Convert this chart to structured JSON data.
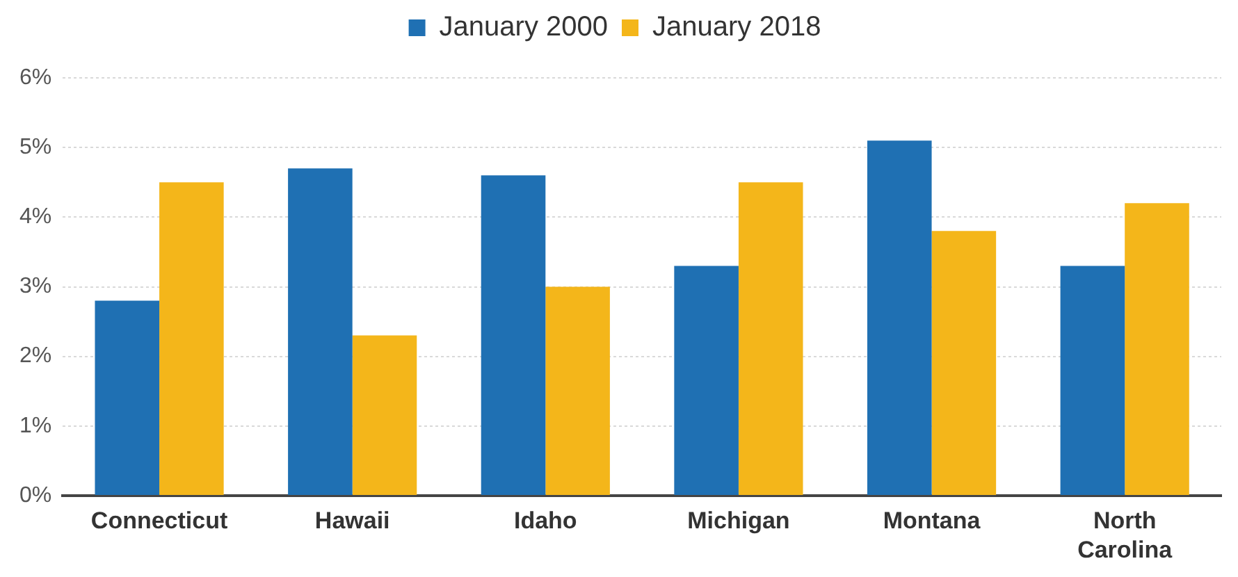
{
  "chart_data": {
    "type": "bar",
    "categories": [
      "Connecticut",
      "Hawaii",
      "Idaho",
      "Michigan",
      "Montana",
      "North Carolina"
    ],
    "series": [
      {
        "name": "January 2000",
        "color": "#1f70b3",
        "values": [
          2.8,
          4.7,
          4.6,
          3.3,
          5.1,
          3.3
        ]
      },
      {
        "name": "January 2018",
        "color": "#f4b61a",
        "values": [
          4.5,
          2.3,
          3.0,
          4.5,
          3.8,
          4.2
        ]
      }
    ],
    "ylim": [
      0,
      6
    ],
    "yticks": [
      {
        "value": 0,
        "label": "0%"
      },
      {
        "value": 1,
        "label": "1%"
      },
      {
        "value": 2,
        "label": "2%"
      },
      {
        "value": 3,
        "label": "3%"
      },
      {
        "value": 4,
        "label": "4%"
      },
      {
        "value": 5,
        "label": "5%"
      },
      {
        "value": 6,
        "label": "6%"
      }
    ],
    "grid": "y",
    "legend": "top"
  }
}
